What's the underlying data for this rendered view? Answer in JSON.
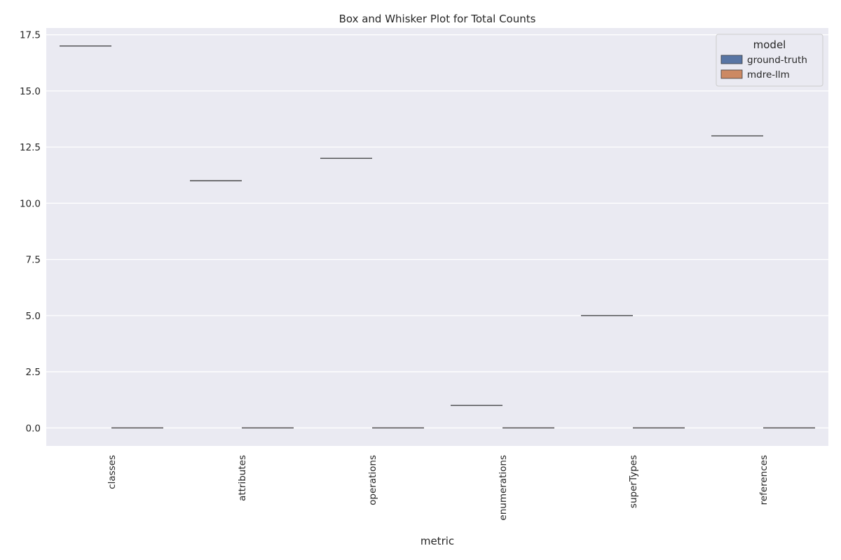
{
  "chart_data": {
    "type": "box",
    "title": "Box and Whisker Plot for Total Counts",
    "xlabel": "metric",
    "ylabel": "",
    "categories": [
      "classes",
      "attributes",
      "operations",
      "enumerations",
      "superTypes",
      "references"
    ],
    "series": [
      {
        "name": "ground-truth",
        "color": "#5875a4",
        "values": [
          17,
          11,
          12,
          1,
          5,
          13
        ]
      },
      {
        "name": "mdre-llm",
        "color": "#cc8963",
        "values": [
          0,
          0,
          0,
          0,
          0,
          0
        ]
      }
    ],
    "ylim": [
      -0.8,
      17.8
    ],
    "yticks": [
      "0.0",
      "2.5",
      "5.0",
      "7.5",
      "10.0",
      "12.5",
      "15.0",
      "17.5"
    ],
    "legend": {
      "title": "model",
      "position": "top-right"
    },
    "grid": true,
    "background": "#eaeaf2"
  }
}
